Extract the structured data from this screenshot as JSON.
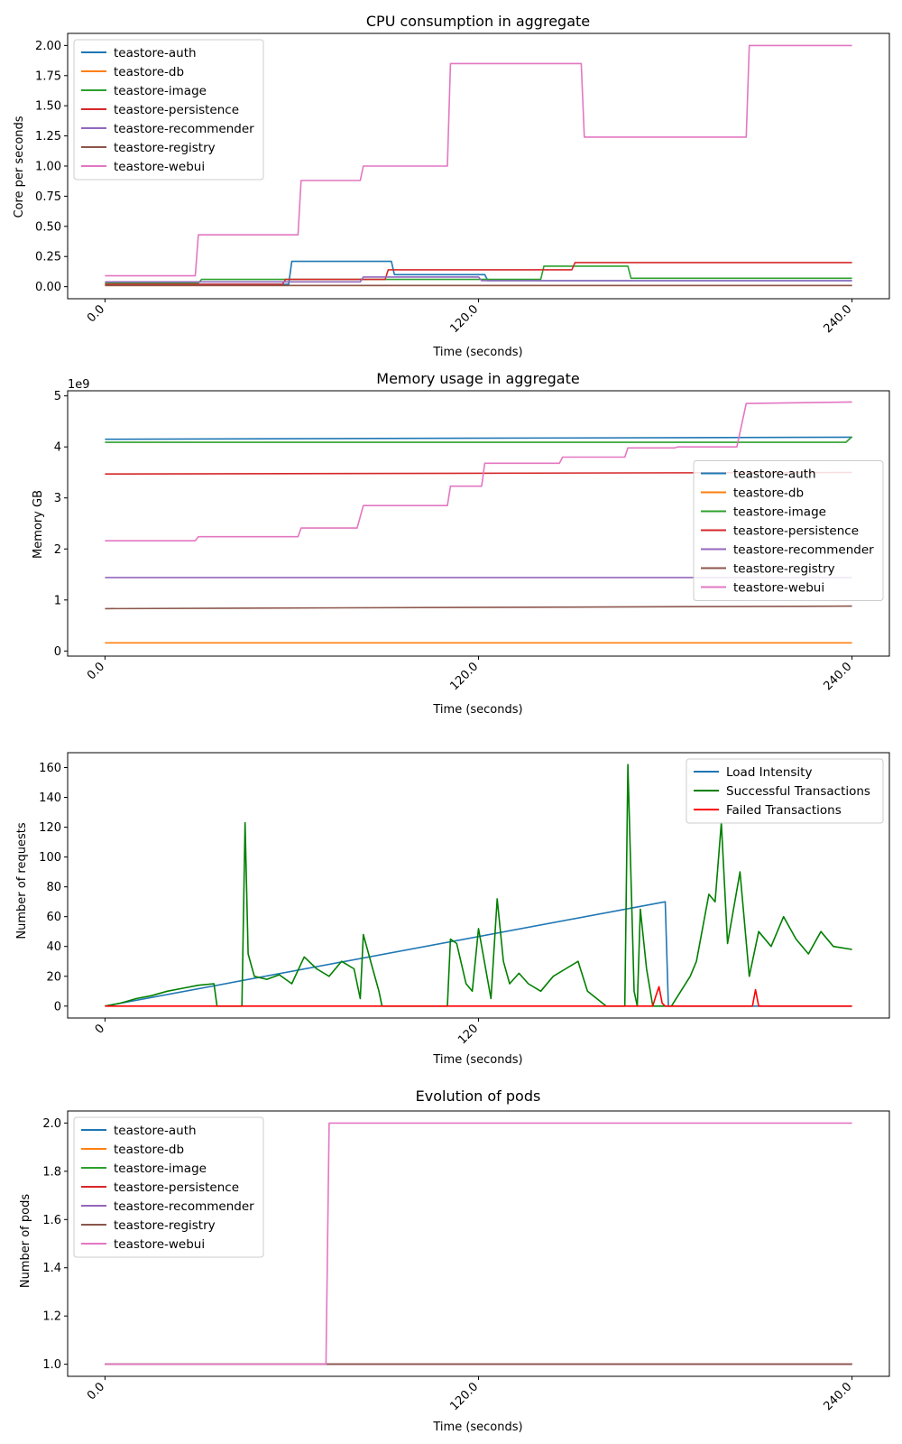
{
  "colors": {
    "auth": "#1f77b4",
    "db": "#ff7f0e",
    "image": "#2ca02c",
    "persistence": "#d62728",
    "recommender": "#9467bd",
    "registry": "#8c564b",
    "webui": "#e377c2",
    "load": "#1f77b4",
    "success": "#008000",
    "failed": "#ff0000"
  },
  "chart_data": [
    {
      "type": "line",
      "title": "CPU consumption in aggregate",
      "xlabel": "Time (seconds)",
      "ylabel": "Core per seconds",
      "xlim": [
        -12,
        252
      ],
      "ylim": [
        -0.1,
        2.1
      ],
      "xticks": [
        0,
        120,
        240
      ],
      "xtick_labels": [
        "0.0",
        "120.0",
        "240.0"
      ],
      "yticks": [
        0,
        0.25,
        0.5,
        0.75,
        1.0,
        1.25,
        1.5,
        1.75,
        2.0
      ],
      "ytick_labels": [
        "0.00",
        "0.25",
        "0.50",
        "0.75",
        "1.00",
        "1.25",
        "1.50",
        "1.75",
        "2.00"
      ],
      "legend": "upper-left",
      "series": [
        {
          "name": "teastore-auth",
          "color_key": "auth",
          "x": [
            0,
            3,
            59,
            60,
            92,
            93,
            122,
            123,
            240
          ],
          "y": [
            0.02,
            0.02,
            0.02,
            0.21,
            0.21,
            0.1,
            0.1,
            0.05,
            0.05
          ]
        },
        {
          "name": "teastore-db",
          "color_key": "db",
          "x": [
            0,
            240
          ],
          "y": [
            0.01,
            0.01
          ]
        },
        {
          "name": "teastore-image",
          "color_key": "image",
          "x": [
            0,
            30,
            31,
            140,
            141,
            168,
            169,
            240
          ],
          "y": [
            0.03,
            0.03,
            0.06,
            0.06,
            0.17,
            0.17,
            0.07,
            0.07
          ]
        },
        {
          "name": "teastore-persistence",
          "color_key": "persistence",
          "x": [
            0,
            57,
            58,
            90,
            91,
            150,
            151,
            240
          ],
          "y": [
            0.02,
            0.02,
            0.06,
            0.06,
            0.14,
            0.14,
            0.2,
            0.2
          ]
        },
        {
          "name": "teastore-recommender",
          "color_key": "recommender",
          "x": [
            0,
            82,
            83,
            120,
            121,
            240
          ],
          "y": [
            0.04,
            0.04,
            0.08,
            0.08,
            0.05,
            0.05
          ]
        },
        {
          "name": "teastore-registry",
          "color_key": "registry",
          "x": [
            0,
            240
          ],
          "y": [
            0.01,
            0.01
          ]
        },
        {
          "name": "teastore-webui",
          "color_key": "webui",
          "x": [
            0,
            29,
            30,
            62,
            63,
            82,
            83,
            110,
            111,
            153,
            154,
            206,
            207,
            240
          ],
          "y": [
            0.09,
            0.09,
            0.43,
            0.43,
            0.88,
            0.88,
            1.0,
            1.0,
            1.85,
            1.85,
            1.24,
            1.24,
            2.0,
            2.0
          ]
        }
      ]
    },
    {
      "type": "line",
      "title": "Memory usage in aggregate",
      "xlabel": "Time (seconds)",
      "ylabel": "Memory GB",
      "scale_note": "1e9",
      "xlim": [
        -12,
        252
      ],
      "ylim": [
        -0.1,
        5.1
      ],
      "xticks": [
        0,
        120,
        240
      ],
      "xtick_labels": [
        "0.0",
        "120.0",
        "240.0"
      ],
      "yticks": [
        0,
        1,
        2,
        3,
        4,
        5
      ],
      "ytick_labels": [
        "0",
        "1",
        "2",
        "3",
        "4",
        "5"
      ],
      "legend": "center-right",
      "series": [
        {
          "name": "teastore-auth",
          "color_key": "auth",
          "x": [
            0,
            240
          ],
          "y": [
            4.15,
            4.19
          ]
        },
        {
          "name": "teastore-db",
          "color_key": "db",
          "x": [
            0,
            240
          ],
          "y": [
            0.16,
            0.16
          ]
        },
        {
          "name": "teastore-image",
          "color_key": "image",
          "x": [
            0,
            238,
            240
          ],
          "y": [
            4.09,
            4.09,
            4.2
          ]
        },
        {
          "name": "teastore-persistence",
          "color_key": "persistence",
          "x": [
            0,
            240
          ],
          "y": [
            3.47,
            3.5
          ]
        },
        {
          "name": "teastore-recommender",
          "color_key": "recommender",
          "x": [
            0,
            240
          ],
          "y": [
            1.44,
            1.44
          ]
        },
        {
          "name": "teastore-registry",
          "color_key": "registry",
          "x": [
            0,
            240
          ],
          "y": [
            0.83,
            0.88
          ]
        },
        {
          "name": "teastore-webui",
          "color_key": "webui",
          "x": [
            0,
            29,
            30,
            62,
            63,
            81,
            83,
            110,
            111,
            121,
            122,
            146,
            147,
            167,
            168,
            183,
            184,
            203,
            206,
            240
          ],
          "y": [
            2.16,
            2.16,
            2.24,
            2.24,
            2.41,
            2.41,
            2.85,
            2.85,
            3.23,
            3.23,
            3.68,
            3.68,
            3.8,
            3.8,
            3.98,
            3.98,
            4.0,
            4.0,
            4.85,
            4.88
          ]
        }
      ]
    },
    {
      "type": "line",
      "title": "",
      "xlabel": "Time (seconds)",
      "ylabel": "Number of requests",
      "xlim": [
        -12,
        252
      ],
      "ylim": [
        -8,
        170
      ],
      "xticks": [
        0,
        120
      ],
      "xtick_labels": [
        "0",
        "120"
      ],
      "yticks": [
        0,
        20,
        40,
        60,
        80,
        100,
        120,
        140,
        160
      ],
      "ytick_labels": [
        "0",
        "20",
        "40",
        "60",
        "80",
        "100",
        "120",
        "140",
        "160"
      ],
      "legend": "upper-right",
      "series": [
        {
          "name": "Load Intensity",
          "color_key": "load",
          "x": [
            0,
            180,
            181,
            240
          ],
          "y": [
            0,
            70,
            0,
            0
          ]
        },
        {
          "name": "Successful Transactions",
          "color_key": "success",
          "x": [
            0,
            5,
            10,
            15,
            20,
            25,
            30,
            35,
            36,
            37,
            44,
            45,
            46,
            48,
            52,
            56,
            60,
            62,
            64,
            68,
            72,
            76,
            80,
            82,
            83,
            86,
            88,
            89,
            90,
            92,
            95,
            100,
            110,
            111,
            113,
            116,
            118,
            120,
            124,
            126,
            128,
            130,
            133,
            136,
            140,
            144,
            148,
            152,
            155,
            161,
            167,
            168,
            170,
            171,
            172,
            174,
            176,
            178,
            180,
            182,
            188,
            190,
            194,
            196,
            198,
            200,
            204,
            207,
            210,
            214,
            218,
            222,
            226,
            230,
            234,
            240
          ],
          "y": [
            0,
            2,
            5,
            7,
            10,
            12,
            14,
            15,
            0,
            0,
            0,
            123,
            35,
            20,
            18,
            21,
            15,
            24,
            33,
            25,
            20,
            30,
            25,
            5,
            48,
            25,
            10,
            0,
            0,
            0,
            0,
            0,
            0,
            45,
            42,
            15,
            10,
            52,
            5,
            72,
            30,
            15,
            22,
            15,
            10,
            20,
            25,
            30,
            10,
            0,
            0,
            162,
            10,
            0,
            65,
            25,
            0,
            0,
            0,
            0,
            20,
            30,
            75,
            70,
            123,
            42,
            90,
            20,
            50,
            40,
            60,
            45,
            35,
            50,
            40,
            38
          ]
        },
        {
          "name": "Failed Transactions",
          "color_key": "failed",
          "x": [
            0,
            176,
            177,
            178,
            179,
            180,
            208,
            209,
            210,
            240
          ],
          "y": [
            0,
            0,
            7,
            13,
            2,
            0,
            0,
            11,
            0,
            0
          ]
        }
      ]
    },
    {
      "type": "line",
      "title": "Evolution of pods",
      "xlabel": "Time (seconds)",
      "ylabel": "Number of pods",
      "xlim": [
        -12,
        252
      ],
      "ylim": [
        0.95,
        2.05
      ],
      "xticks": [
        0,
        120,
        240
      ],
      "xtick_labels": [
        "0.0",
        "120.0",
        "240.0"
      ],
      "yticks": [
        1.0,
        1.2,
        1.4,
        1.6,
        1.8,
        2.0
      ],
      "ytick_labels": [
        "1.0",
        "1.2",
        "1.4",
        "1.6",
        "1.8",
        "2.0"
      ],
      "legend": "upper-left",
      "series": [
        {
          "name": "teastore-auth",
          "color_key": "auth",
          "x": [
            0,
            240
          ],
          "y": [
            1,
            1
          ]
        },
        {
          "name": "teastore-db",
          "color_key": "db",
          "x": [
            0,
            240
          ],
          "y": [
            1,
            1
          ]
        },
        {
          "name": "teastore-image",
          "color_key": "image",
          "x": [
            0,
            240
          ],
          "y": [
            1,
            1
          ]
        },
        {
          "name": "teastore-persistence",
          "color_key": "persistence",
          "x": [
            0,
            240
          ],
          "y": [
            1,
            1
          ]
        },
        {
          "name": "teastore-recommender",
          "color_key": "recommender",
          "x": [
            0,
            240
          ],
          "y": [
            1,
            1
          ]
        },
        {
          "name": "teastore-registry",
          "color_key": "registry",
          "x": [
            0,
            240
          ],
          "y": [
            1,
            1
          ]
        },
        {
          "name": "teastore-webui",
          "color_key": "webui",
          "x": [
            0,
            71,
            72,
            240
          ],
          "y": [
            1,
            1,
            2,
            2
          ]
        }
      ]
    }
  ]
}
